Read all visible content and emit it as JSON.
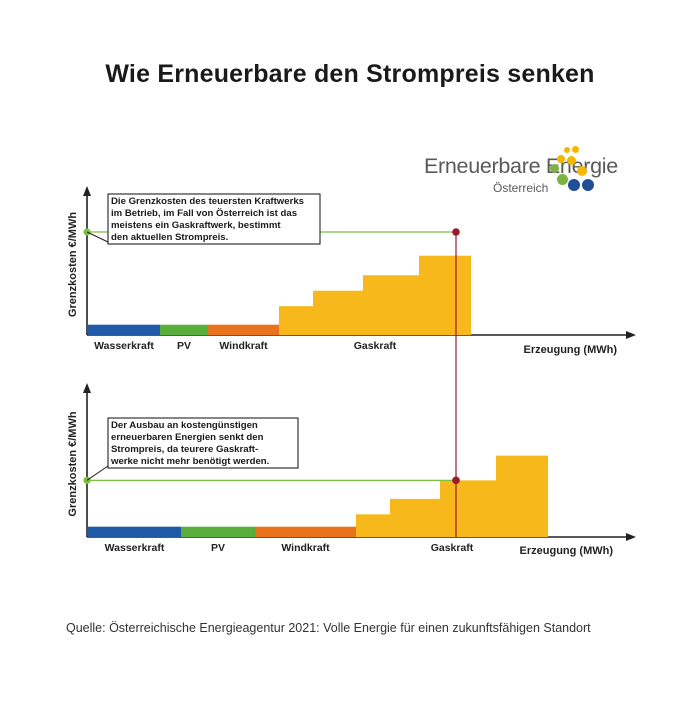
{
  "title": "Wie Erneuerbare den Strompreis senken",
  "logo": {
    "name": "Erneuerbare Energie",
    "subtitle": "Österreich",
    "colors": [
      "#f5b800",
      "#7cb342",
      "#1f4e9a"
    ]
  },
  "source": "Quelle: Österreichische Energieagentur 2021: Volle Energie für einen zukunftsfähigen Standort",
  "colors": {
    "wasserkraft": "#1f5aa6",
    "pv": "#5aaf3c",
    "windkraft": "#e8731c",
    "gaskraft": "#f7b81c",
    "price_line": "#7cc040",
    "marker": "#9b1b2e"
  },
  "chart_data": [
    {
      "type": "merit-order",
      "xlabel": "Erzeugung (MWh)",
      "ylabel": "Grenzkosten €/MWh",
      "annotation": [
        "Die Grenzkosten des teuersten Kraftwerks",
        "im Betrieb, im Fall von Österreich ist das",
        "meistens ein Gaskraftwerk, bestimmt",
        "den aktuellen Strompreis."
      ],
      "categories": [
        {
          "name": "Wasserkraft",
          "key": "wasserkraft",
          "width": 72,
          "cost": 1
        },
        {
          "name": "PV",
          "key": "pv",
          "width": 48,
          "cost": 1
        },
        {
          "name": "Windkraft",
          "key": "windkraft",
          "width": 71,
          "cost": 1
        },
        {
          "name": "Gaskraft",
          "key": "gaskraft",
          "blocks": [
            {
              "width": 34,
              "cost": 2.8
            },
            {
              "width": 50,
              "cost": 4.3
            },
            {
              "width": 56,
              "cost": 5.8
            },
            {
              "width": 52,
              "cost": 7.7
            }
          ]
        }
      ],
      "demand": 370,
      "price": 10
    },
    {
      "type": "merit-order",
      "xlabel": "Erzeugung (MWh)",
      "ylabel": "Grenzkosten €/MWh",
      "annotation": [
        "Der Ausbau an kostengünstigen",
        "erneuerbaren Energien senkt den",
        "Strompreis, da teurere Gaskraft-",
        "werke nicht mehr benötigt werden."
      ],
      "categories": [
        {
          "name": "Wasserkraft",
          "key": "wasserkraft",
          "width": 93,
          "cost": 1
        },
        {
          "name": "PV",
          "key": "pv",
          "width": 74,
          "cost": 1
        },
        {
          "name": "Windkraft",
          "key": "windkraft",
          "width": 101,
          "cost": 1
        },
        {
          "name": "Gaskraft",
          "key": "gaskraft",
          "blocks": [
            {
              "width": 34,
              "cost": 2.2
            },
            {
              "width": 50,
              "cost": 3.7
            },
            {
              "width": 56,
              "cost": 5.5
            },
            {
              "width": 52,
              "cost": 7.9
            }
          ]
        }
      ],
      "demand": 370,
      "price": 5.5
    }
  ]
}
